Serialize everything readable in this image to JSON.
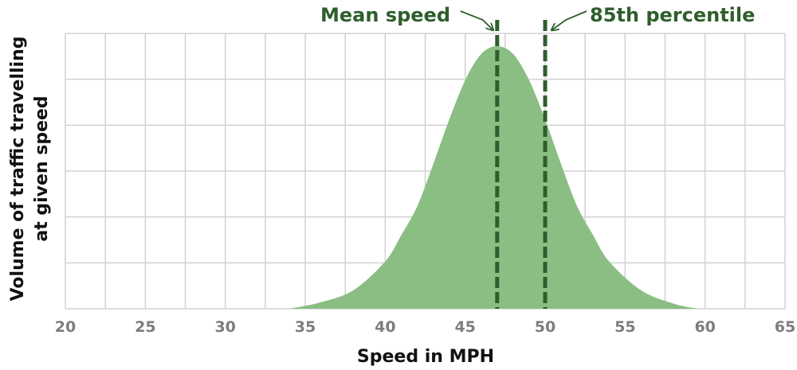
{
  "chart_data": {
    "type": "area",
    "title": "",
    "xlabel": "Speed in MPH",
    "ylabel_lines": [
      "Volume of traffic travelling",
      "at given speed"
    ],
    "xlim": [
      20,
      65
    ],
    "ylim": [
      0,
      1
    ],
    "x_ticks": [
      20,
      25,
      30,
      35,
      40,
      45,
      50,
      55,
      60,
      65
    ],
    "y_gridlines": 6,
    "grid": true,
    "series": [
      {
        "x": [
          34,
          36,
          38,
          40,
          41,
          42,
          43,
          44,
          45,
          46,
          47,
          48,
          49,
          50,
          51,
          52,
          53,
          54,
          56,
          58,
          59.5
        ],
        "values": [
          0,
          0.025,
          0.07,
          0.18,
          0.28,
          0.39,
          0.55,
          0.72,
          0.87,
          0.97,
          1.0,
          0.97,
          0.87,
          0.72,
          0.55,
          0.39,
          0.28,
          0.18,
          0.07,
          0.02,
          0
        ]
      }
    ],
    "reference_lines": [
      {
        "label": "Mean speed",
        "x": 47
      },
      {
        "label": "85th percentile",
        "x": 50
      }
    ],
    "colors": {
      "fill": "#8abe83",
      "line": "#2e5e2c",
      "grid": "#d2d2d2"
    }
  }
}
